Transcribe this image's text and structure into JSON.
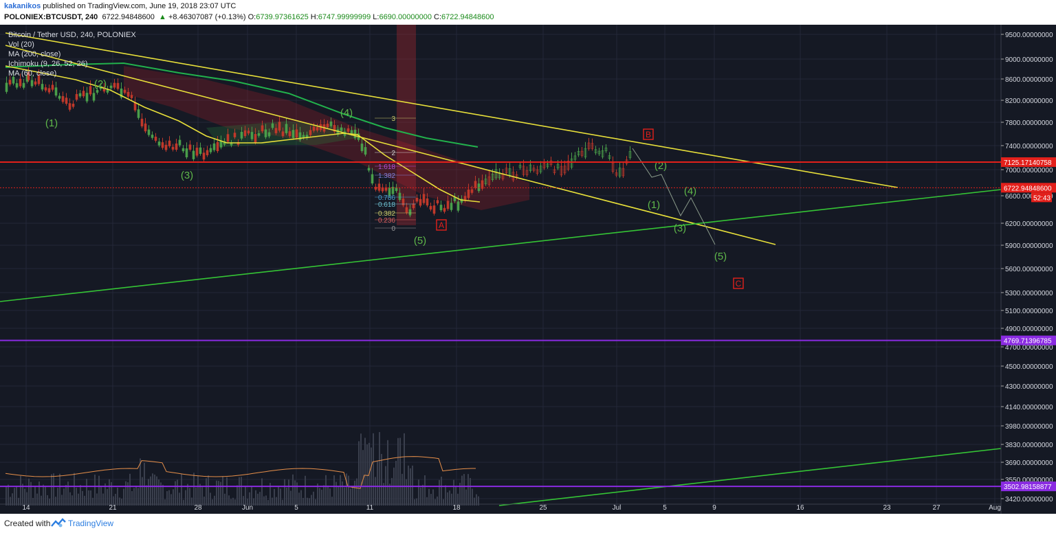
{
  "header": {
    "author": "kakanikos",
    "published": "published on TradingView.com, June 19, 2018 23:07 UTC",
    "symbol": "POLONIEX:BTCUSDT, 240",
    "last": "6722.94848600",
    "change_arrow": "▲",
    "change": "+8.46307087 (+0.13%)",
    "open_label": "O:",
    "open": "6739.97361625",
    "high_label": "H:",
    "high": "6747.99999999",
    "low_label": "L:",
    "low": "6690.00000000",
    "close_label": "C:",
    "close": "6722.94848600"
  },
  "legend": [
    "Bitcoin / Tether USD, 240, POLONIEX",
    "Vol (20)",
    "MA (200, close)",
    "Ichimoku (9, 26, 52, 26)",
    "MA (60, close)"
  ],
  "chart_data": {
    "type": "line",
    "title": "Bitcoin / Tether USD, 240, POLONIEX",
    "price_axis_ticks": [
      9500,
      9000,
      8600,
      8200,
      7800,
      7400,
      7000,
      6600,
      6200,
      5900,
      5600,
      5300,
      5100,
      4900,
      4700,
      4500,
      4300,
      4140,
      3980,
      3830,
      3690,
      3550,
      3420
    ],
    "price_axis_labels": [
      "9500.00000000",
      "9000.00000000",
      "8600.00000000",
      "8200.00000000",
      "7800.00000000",
      "7400.00000000",
      "7000.00000000",
      "6600.00000000",
      "6200.00000000",
      "5900.00000000",
      "5600.00000000",
      "5300.00000000",
      "5100.00000000",
      "4900.00000000",
      "4700.00000000",
      "4500.00000000",
      "4300.00000000",
      "4140.00000000",
      "3980.00000000",
      "3830.00000000",
      "3690.00000000",
      "3550.00000000",
      "3420.00000000"
    ],
    "time_axis_labels": [
      "14",
      "21",
      "28",
      "Jun",
      "5",
      "11",
      "18",
      "25",
      "Jul",
      "5",
      "9",
      "16",
      "23",
      "27",
      "Aug"
    ],
    "price_markers": [
      {
        "label": "7125.17140758",
        "value": 7125.17,
        "color": "#e3201b"
      },
      {
        "label": "6722.94848600",
        "value": 6722.95,
        "color": "#e3201b"
      },
      {
        "label": "4769.71396785",
        "value": 4769.71,
        "color": "#8a2be2"
      },
      {
        "label": "3502.98158877",
        "value": 3502.98,
        "color": "#8a2be2"
      }
    ],
    "countdown": "52:43",
    "fib_levels": [
      "3",
      "2",
      "1.618",
      "1.382",
      "0.786",
      "0.618",
      "0.382",
      "0.236",
      "0"
    ],
    "wave_labels": [
      {
        "text": "(1)",
        "color": "#5fb84a"
      },
      {
        "text": "(2)",
        "color": "#5fb84a"
      },
      {
        "text": "(3)",
        "color": "#5fb84a"
      },
      {
        "text": "(4)",
        "color": "#5fb84a"
      },
      {
        "text": "(5)",
        "color": "#5fb84a"
      },
      {
        "text": "A",
        "color": "#e3201b"
      },
      {
        "text": "B",
        "color": "#e3201b"
      },
      {
        "text": "(2)",
        "color": "#5fb84a"
      },
      {
        "text": "(1)",
        "color": "#5fb84a"
      },
      {
        "text": "(4)",
        "color": "#5fb84a"
      },
      {
        "text": "(3)",
        "color": "#5fb84a"
      },
      {
        "text": "(5)",
        "color": "#5fb84a"
      },
      {
        "text": "C",
        "color": "#e3201b"
      }
    ],
    "colors": {
      "background": "#151924",
      "trendline_yellow": "#e8e03a",
      "trendline_green": "#35c535",
      "ma200": "#22b24c",
      "ma60": "#e8e03a",
      "candle_up": "#4a9e4a",
      "candle_down": "#c0392b",
      "resistance_red": "#e3201b",
      "support_purple": "#8a2be2",
      "volume_ma": "#e8904a"
    }
  },
  "footer": {
    "created": "Created with",
    "brand": "TradingView"
  }
}
